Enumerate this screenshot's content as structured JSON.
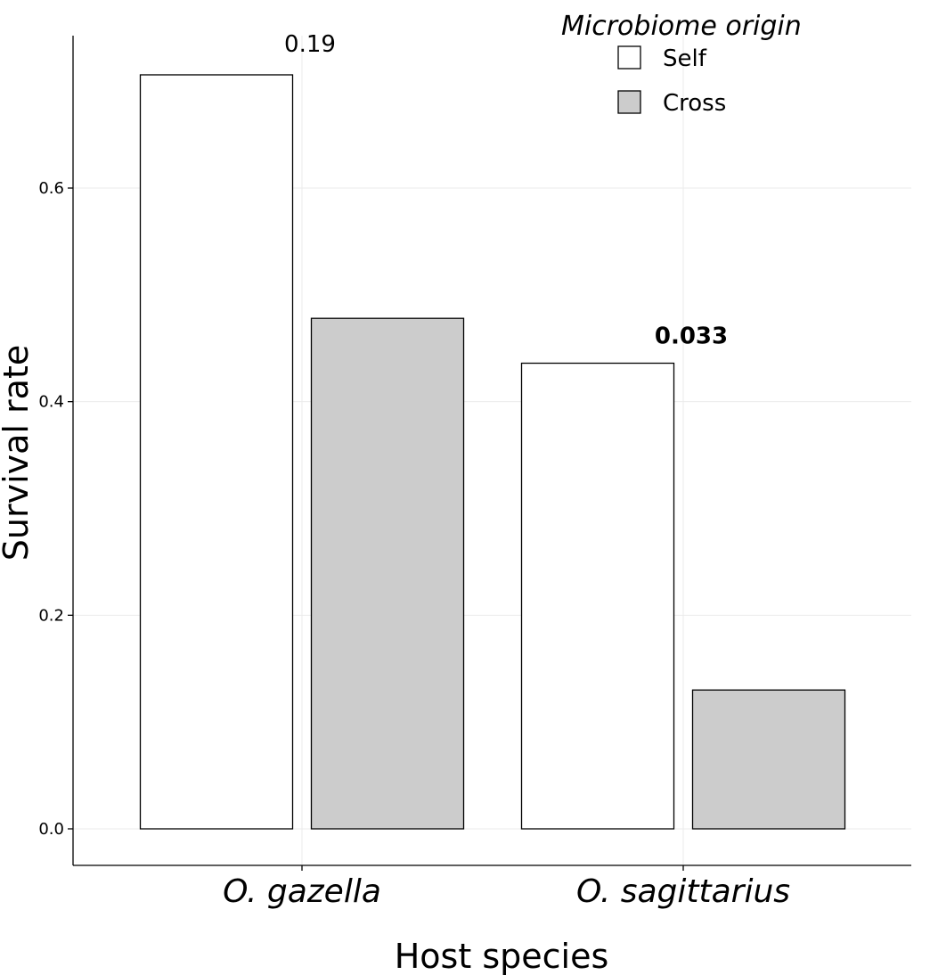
{
  "chart_data": {
    "type": "bar",
    "categories": [
      "O. gazella",
      "O. sagittarius"
    ],
    "series": [
      {
        "name": "Self",
        "values": [
          0.706,
          0.436
        ],
        "color": "#ffffff"
      },
      {
        "name": "Cross",
        "values": [
          0.478,
          0.13
        ],
        "color": "#cccccc"
      }
    ],
    "xlabel": "Host species",
    "ylabel": "Survival rate",
    "ylim": [
      -0.035,
      0.745
    ],
    "yticks": [
      0.0,
      0.2,
      0.4,
      0.6
    ],
    "ytick_labels": [
      "0.0",
      "0.2",
      "0.4",
      "0.6"
    ],
    "grid": true,
    "legend": {
      "title": "Microbiome origin",
      "placement": "top-right",
      "entries": [
        "Self",
        "Cross"
      ]
    },
    "annotations": [
      {
        "text": "0.19",
        "category": "O. gazella",
        "y": 0.735,
        "bold": false
      },
      {
        "text": "0.033",
        "category": "O. sagittarius",
        "y": 0.462,
        "bold": true
      }
    ]
  }
}
